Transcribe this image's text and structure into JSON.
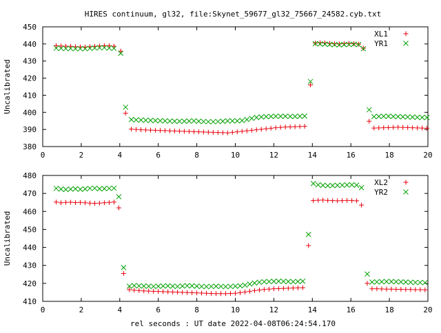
{
  "title": "HIRES continuum, gl32, file:Skynet_59677_gl32_75667_24582.cyb.txt",
  "xlabel": "rel seconds : UT date 2022-04-08T06:24:54.170",
  "colors": {
    "red": "#e8000b",
    "green": "#00a000",
    "axis": "#000000"
  },
  "chart_data": [
    {
      "type": "scatter",
      "ylabel": "Uncalibrated",
      "xlim": [
        0,
        20
      ],
      "ylim": [
        380,
        450
      ],
      "xticks": [
        0,
        2,
        4,
        6,
        8,
        10,
        12,
        14,
        16,
        18,
        20
      ],
      "yticks": [
        380,
        390,
        400,
        410,
        420,
        430,
        440,
        450
      ],
      "legend_position": "top-right",
      "x": [
        0.7,
        0.95,
        1.2,
        1.45,
        1.7,
        1.95,
        2.2,
        2.45,
        2.7,
        2.95,
        3.2,
        3.45,
        3.7,
        4.05,
        4.3,
        4.6,
        4.85,
        5.1,
        5.35,
        5.6,
        5.85,
        6.1,
        6.35,
        6.6,
        6.85,
        7.1,
        7.35,
        7.6,
        7.85,
        8.1,
        8.35,
        8.6,
        8.85,
        9.1,
        9.35,
        9.6,
        9.85,
        10.1,
        10.35,
        10.6,
        10.85,
        11.1,
        11.35,
        11.6,
        11.85,
        12.1,
        12.35,
        12.6,
        12.85,
        13.1,
        13.35,
        13.6,
        13.9,
        14.15,
        14.4,
        14.65,
        14.9,
        15.15,
        15.4,
        15.65,
        15.9,
        16.15,
        16.4,
        16.65,
        16.95,
        17.2,
        17.45,
        17.7,
        17.95,
        18.2,
        18.45,
        18.7,
        18.95,
        19.2,
        19.45,
        19.7,
        19.95
      ],
      "series": [
        {
          "name": "XL1",
          "marker": "plus",
          "values": [
            439,
            438.8,
            438.7,
            438.6,
            438.4,
            438.3,
            438.2,
            438.4,
            438.6,
            438.8,
            439,
            438.9,
            438.7,
            435.8,
            399.5,
            390.2,
            390,
            389.8,
            389.7,
            389.6,
            389.5,
            389.4,
            389.3,
            389.2,
            389.1,
            389,
            388.9,
            388.8,
            388.7,
            388.6,
            388.5,
            388.4,
            388.3,
            388.2,
            388.1,
            388,
            388.3,
            388.6,
            388.9,
            389.2,
            389.5,
            389.8,
            390.1,
            390.4,
            390.7,
            391,
            391.2,
            391.4,
            391.5,
            391.6,
            391.7,
            391.8,
            416,
            440.5,
            440.7,
            440.6,
            440.3,
            440.1,
            440,
            440.2,
            440.3,
            440.1,
            439.9,
            437.5,
            394.8,
            390.8,
            390.9,
            391,
            391.1,
            391.2,
            391.3,
            391.2,
            391.1,
            391,
            390.9,
            390.8,
            390.7
          ]
        },
        {
          "name": "YR1",
          "marker": "cross",
          "values": [
            437.5,
            437.4,
            437.3,
            437.3,
            437.2,
            437.2,
            437.2,
            437.4,
            437.6,
            437.8,
            437.8,
            437.6,
            437.4,
            434.5,
            403,
            395.8,
            395.6,
            395.5,
            395.4,
            395.3,
            395.2,
            395.1,
            395,
            394.9,
            394.8,
            394.8,
            394.8,
            394.9,
            395,
            394.8,
            394.6,
            394.5,
            394.5,
            394.6,
            394.8,
            395,
            395,
            395,
            395.2,
            395.8,
            396.5,
            397,
            397.3,
            397.5,
            397.6,
            397.7,
            397.7,
            397.7,
            397.6,
            397.6,
            397.7,
            397.8,
            418,
            440.2,
            440,
            439.9,
            439.7,
            439.6,
            439.5,
            439.6,
            439.7,
            439.8,
            439.6,
            437.2,
            401.5,
            397.5,
            397.6,
            397.7,
            397.7,
            397.6,
            397.5,
            397.4,
            397.3,
            397.2,
            397.1,
            397,
            397
          ]
        }
      ]
    },
    {
      "type": "scatter",
      "ylabel": "Uncalibrated",
      "xlim": [
        0,
        20
      ],
      "ylim": [
        410,
        480
      ],
      "xticks": [
        0,
        2,
        4,
        6,
        8,
        10,
        12,
        14,
        16,
        18,
        20
      ],
      "yticks": [
        410,
        420,
        430,
        440,
        450,
        460,
        470,
        480
      ],
      "legend_position": "top-right",
      "x": [
        0.7,
        0.95,
        1.2,
        1.45,
        1.7,
        1.95,
        2.2,
        2.45,
        2.7,
        2.95,
        3.2,
        3.45,
        3.7,
        3.95,
        4.2,
        4.5,
        4.75,
        5,
        5.25,
        5.5,
        5.75,
        6,
        6.25,
        6.5,
        6.75,
        7,
        7.25,
        7.5,
        7.75,
        8,
        8.25,
        8.5,
        8.75,
        9,
        9.25,
        9.5,
        9.75,
        10,
        10.25,
        10.5,
        10.75,
        11,
        11.25,
        11.5,
        11.75,
        12,
        12.25,
        12.5,
        12.75,
        13,
        13.25,
        13.5,
        13.8,
        14.05,
        14.3,
        14.55,
        14.8,
        15.05,
        15.3,
        15.55,
        15.8,
        16.05,
        16.3,
        16.55,
        16.85,
        17.1,
        17.35,
        17.6,
        17.85,
        18.1,
        18.35,
        18.6,
        18.85,
        19.1,
        19.35,
        19.6,
        19.85
      ],
      "series": [
        {
          "name": "XL2",
          "marker": "plus",
          "values": [
            465.2,
            464.8,
            465,
            465.1,
            464.9,
            465,
            464.8,
            464.6,
            464.5,
            464.6,
            464.8,
            465,
            465.2,
            462,
            425.5,
            416.5,
            416.2,
            416,
            415.8,
            415.7,
            415.6,
            415.5,
            415.4,
            415.3,
            415.2,
            415.1,
            415,
            414.9,
            414.8,
            414.7,
            414.6,
            414.5,
            414.4,
            414.3,
            414.3,
            414.3,
            414.4,
            414.5,
            414.8,
            415.2,
            415.6,
            416,
            416.3,
            416.6,
            416.8,
            417,
            417.1,
            417.2,
            417.3,
            417.4,
            417.5,
            417.6,
            441,
            466,
            466.2,
            466.3,
            466.1,
            466,
            465.9,
            466,
            466.1,
            466,
            465.9,
            463.5,
            420,
            417,
            417,
            416.9,
            416.8,
            416.8,
            416.7,
            416.7,
            416.6,
            416.6,
            416.5,
            416.5,
            416.4
          ]
        },
        {
          "name": "YR2",
          "marker": "cross",
          "values": [
            472.8,
            472.4,
            472.2,
            472.4,
            472.6,
            472.3,
            472.5,
            472.8,
            472.9,
            472.6,
            472.7,
            472.8,
            472.9,
            468.2,
            428.8,
            418.4,
            418.8,
            418.6,
            418.5,
            418.4,
            418.3,
            418.4,
            418.5,
            418.6,
            418.4,
            418.3,
            418.5,
            418.7,
            418.6,
            418.4,
            418.3,
            418.2,
            418.3,
            418.4,
            418.3,
            418.2,
            418.3,
            418.4,
            418.6,
            419,
            419.6,
            420.2,
            420.6,
            420.9,
            421,
            421.1,
            421.2,
            421.1,
            421,
            420.9,
            421,
            421.2,
            447.2,
            475.5,
            474.8,
            474.5,
            474.3,
            474.4,
            474.5,
            474.6,
            474.7,
            474.8,
            474.6,
            473.2,
            425.2,
            420.7,
            420.8,
            420.9,
            421,
            421,
            420.9,
            420.8,
            420.7,
            420.6,
            420.5,
            420.5,
            420.4
          ]
        }
      ]
    }
  ]
}
